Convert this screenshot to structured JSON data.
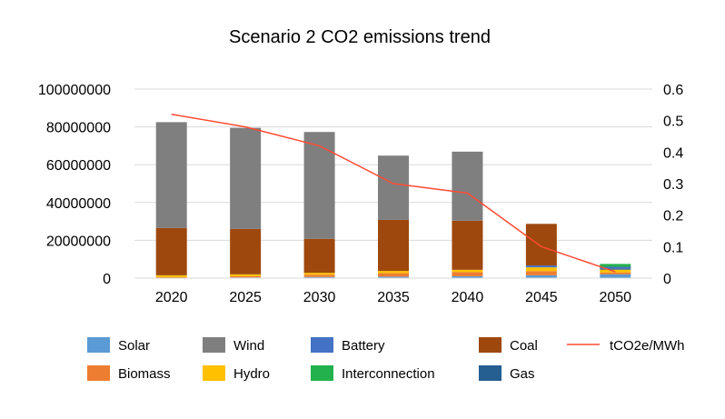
{
  "chart_data": {
    "type": "bar",
    "stacked": true,
    "title": "Scenario 2 CO2 emissions trend",
    "categories": [
      "2020",
      "2025",
      "2030",
      "2035",
      "2040",
      "2045",
      "2050"
    ],
    "y_left": {
      "min": 0,
      "max": 100000000,
      "ticks": [
        "0",
        "20000000",
        "40000000",
        "60000000",
        "80000000",
        "100000000"
      ]
    },
    "y_right": {
      "min": 0,
      "max": 0.6,
      "ticks": [
        "0",
        "0.1",
        "0.2",
        "0.3",
        "0.4",
        "0.5",
        "0.6"
      ]
    },
    "grid": true,
    "legend_position": "bottom",
    "series": [
      {
        "name": "Solar",
        "color": "#5b9bd5",
        "values": [
          200000,
          400000,
          600000,
          800000,
          1000000,
          1500000,
          2000000
        ]
      },
      {
        "name": "Biomass",
        "color": "#ed7d31",
        "values": [
          300000,
          600000,
          1200000,
          1800000,
          2200000,
          2200000,
          1000000
        ]
      },
      {
        "name": "Hydro",
        "color": "#ffc000",
        "values": [
          1000000,
          1000000,
          1000000,
          1200000,
          1200000,
          2000000,
          1500000
        ]
      },
      {
        "name": "Gas",
        "color": "#255e91",
        "values": [
          0,
          0,
          0,
          0,
          0,
          0,
          500000
        ]
      },
      {
        "name": "Battery",
        "color": "#4472c4",
        "values": [
          0,
          0,
          0,
          0,
          0,
          1000000,
          1000000
        ]
      },
      {
        "name": "Interconnection",
        "color": "#22b14c",
        "values": [
          0,
          0,
          0,
          0,
          0,
          0,
          1500000
        ]
      },
      {
        "name": "Coal",
        "color": "#9e480e",
        "values": [
          25000000,
          24000000,
          18000000,
          27000000,
          26000000,
          22000000,
          0
        ]
      },
      {
        "name": "Wind",
        "color": "#7f7f7f",
        "values": [
          56000000,
          53500000,
          56500000,
          34000000,
          36500000,
          0,
          0
        ]
      }
    ],
    "line_series": {
      "name": "tCO2e/MWh",
      "color": "#ff4b33",
      "axis": "right",
      "values": [
        0.52,
        0.48,
        0.42,
        0.3,
        0.27,
        0.1,
        0.02
      ]
    },
    "legend": [
      {
        "name": "Solar",
        "color": "#5b9bd5",
        "kind": "box"
      },
      {
        "name": "Wind",
        "color": "#7f7f7f",
        "kind": "box"
      },
      {
        "name": "Battery",
        "color": "#4472c4",
        "kind": "box"
      },
      {
        "name": "Coal",
        "color": "#9e480e",
        "kind": "box"
      },
      {
        "name": "tCO2e/MWh",
        "color": "#ff4b33",
        "kind": "line"
      },
      {
        "name": "Biomass",
        "color": "#ed7d31",
        "kind": "box"
      },
      {
        "name": "Hydro",
        "color": "#ffc000",
        "kind": "box"
      },
      {
        "name": "Interconnection",
        "color": "#22b14c",
        "kind": "box"
      },
      {
        "name": "Gas",
        "color": "#255e91",
        "kind": "box"
      }
    ]
  }
}
